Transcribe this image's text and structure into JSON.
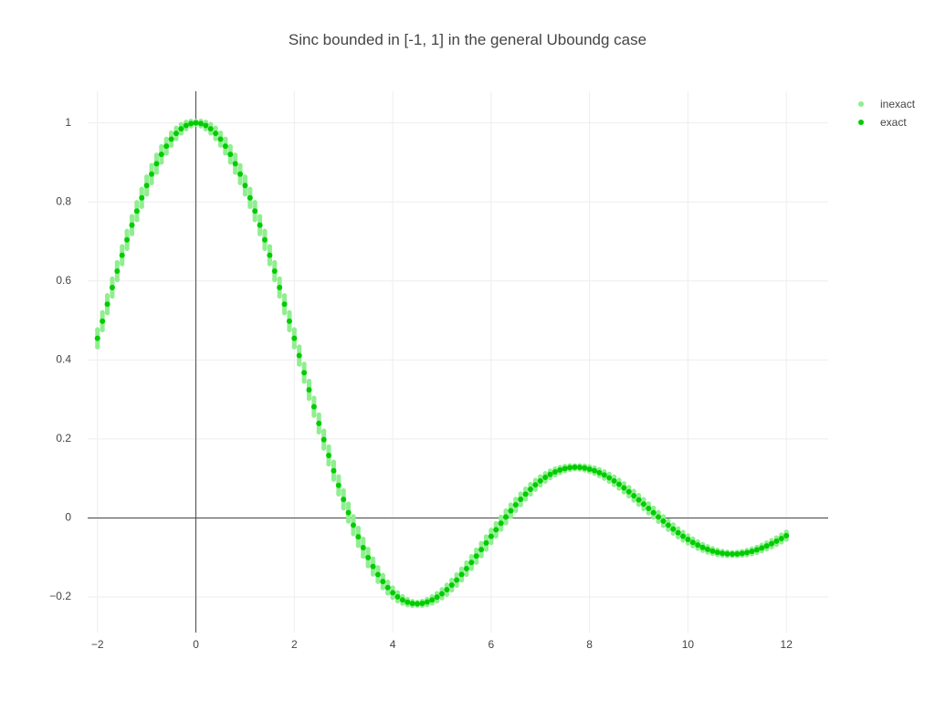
{
  "chart_data": {
    "type": "scatter",
    "title": "Sinc bounded in [-1, 1] in the general Uboundg case",
    "xlabel": "",
    "ylabel": "",
    "xlim": [
      -2.2,
      12.85
    ],
    "ylim": [
      -0.29,
      1.08
    ],
    "x_ticks": [
      -2,
      0,
      2,
      4,
      6,
      8,
      10,
      12
    ],
    "x_tick_labels": [
      "−2",
      "0",
      "2",
      "4",
      "6",
      "8",
      "10",
      "12"
    ],
    "y_ticks": [
      -0.2,
      0,
      0.2,
      0.4,
      0.6,
      0.8,
      1
    ],
    "y_tick_labels": [
      "−0.2",
      "0",
      "0.2",
      "0.4",
      "0.6",
      "0.8",
      "1"
    ],
    "grid": true,
    "zero_lines": true,
    "legend_position": "top-right",
    "function": "sin(x)/x",
    "x_range": [
      -2,
      12
    ],
    "x_step": 0.1,
    "series": [
      {
        "name": "inexact",
        "color": "#90ee90",
        "mode": "interval-markers",
        "description_values": "each sample spans the interval [sinc(x) - half_width, sinc(x) + half_width]",
        "half_width": 0.022,
        "flat_near_extrema_width": 0.004
      },
      {
        "name": "exact",
        "color": "#00cc00",
        "mode": "markers"
      }
    ]
  },
  "legend": {
    "items": [
      {
        "label": "inexact",
        "color": "#90ee90"
      },
      {
        "label": "exact",
        "color": "#00cc00"
      }
    ]
  }
}
